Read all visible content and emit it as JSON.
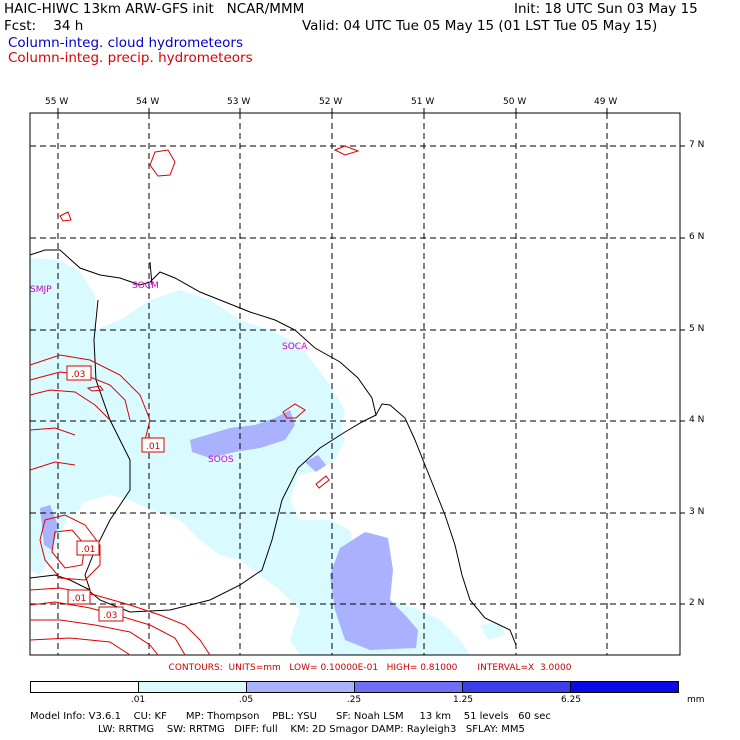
{
  "header": {
    "model": "HAIC-HIWC 13km ARW-GFS init   NCAR/MMM",
    "init": "Init: 18 UTC Sun 03 May 15",
    "fcst_label": "Fcst:    34 h",
    "valid": "Valid: 04 UTC Tue 05 May 15 (01 LST Tue 05 May 15)",
    "field1": "Column-integ. cloud hydrometeors",
    "field2": "Column-integ. precip. hydrometeors"
  },
  "map": {
    "lon_labels": [
      "55 W",
      "54 W",
      "53 W",
      "52 W",
      "51 W",
      "50 W",
      "49 W"
    ],
    "lat_labels": [
      "7 N",
      "6 N",
      "5 N",
      "4 N",
      "3 N",
      "2 N"
    ],
    "sites": [
      "SMJP",
      "SOCM",
      "SOCA",
      "SOOS"
    ],
    "contour_labels": [
      ".03",
      ".01",
      ".01",
      ".01",
      ".03"
    ],
    "colors": {
      "cloud_light": "#d9fbff",
      "cloud_med": "#aab1ff",
      "contour": "#dd0000",
      "site": "#cc00cc"
    }
  },
  "contours_line": "CONTOURS:  UNITS=mm   LOW= 0.10000E-01   HIGH= 0.81000       INTERVAL=X  3.0000",
  "colorbar": {
    "colors": [
      "#ffffff",
      "#d9fbff",
      "#aab1ff",
      "#6f6ff5",
      "#3d3dea",
      "#0a0ae6"
    ],
    "ticks": [
      ".01",
      ".05",
      ".25",
      "1.25",
      "6.25"
    ],
    "unit": "mm"
  },
  "model_info": {
    "line1": "Model Info: V3.6.1    CU: KF      MP: Thompson    PBL: YSU      SF: Noah LSM     13 km    51 levels   60 sec",
    "line2": "LW: RRTMG    SW: RRTMG   DIFF: full    KM: 2D Smagor DAMP: Rayleigh3   SFLAY: MM5"
  }
}
